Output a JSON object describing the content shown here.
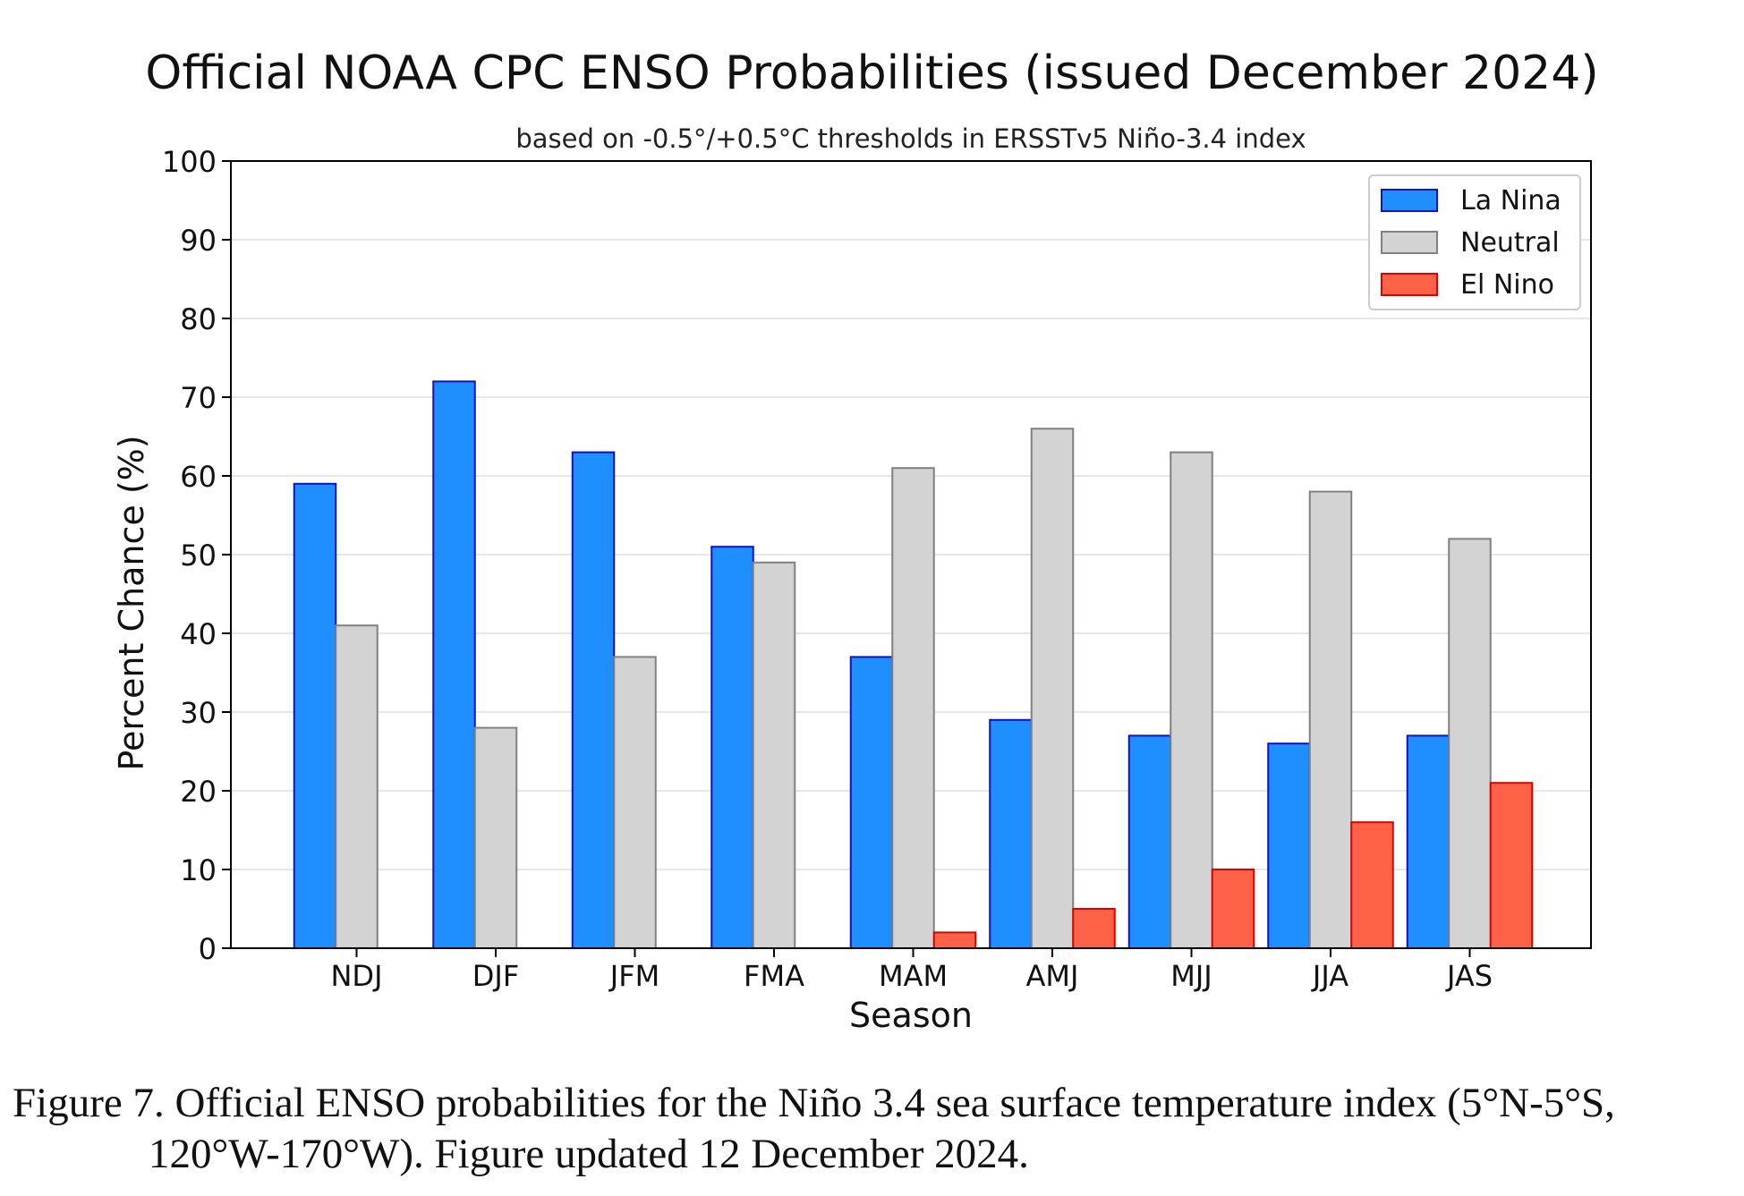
{
  "chart_data": {
    "type": "bar",
    "title": "Official NOAA CPC ENSO Probabilities (issued December 2024)",
    "subtitle": "based on -0.5°/+0.5°C thresholds in ERSSTv5 Niño-3.4 index",
    "xlabel": "Season",
    "ylabel": "Percent Chance (%)",
    "ylim": [
      0,
      100
    ],
    "yticks": [
      "0",
      "10",
      "20",
      "30",
      "40",
      "50",
      "60",
      "70",
      "80",
      "90",
      "100"
    ],
    "grid": true,
    "legend_position": "top-right",
    "categories": [
      "NDJ",
      "DJF",
      "JFM",
      "FMA",
      "MAM",
      "AMJ",
      "MJJ",
      "JJA",
      "JAS"
    ],
    "series": [
      {
        "name": "La Nina",
        "color": "#1f8fff",
        "edge": "#1010cc",
        "values": [
          59,
          72,
          63,
          51,
          37,
          29,
          27,
          26,
          27
        ]
      },
      {
        "name": "Neutral",
        "color": "#d3d3d3",
        "edge": "#808080",
        "values": [
          41,
          28,
          37,
          49,
          61,
          66,
          63,
          58,
          52
        ]
      },
      {
        "name": "El Nino",
        "color": "#ff6347",
        "edge": "#dd0000",
        "values": [
          0,
          0,
          0,
          0,
          2,
          5,
          10,
          16,
          21
        ]
      }
    ]
  },
  "caption": {
    "line1": "Figure 7. Official ENSO probabilities for the Niño 3.4 sea surface temperature index (5°N-5°S,",
    "line2": "120°W-170°W). Figure updated 12 December 2024."
  }
}
